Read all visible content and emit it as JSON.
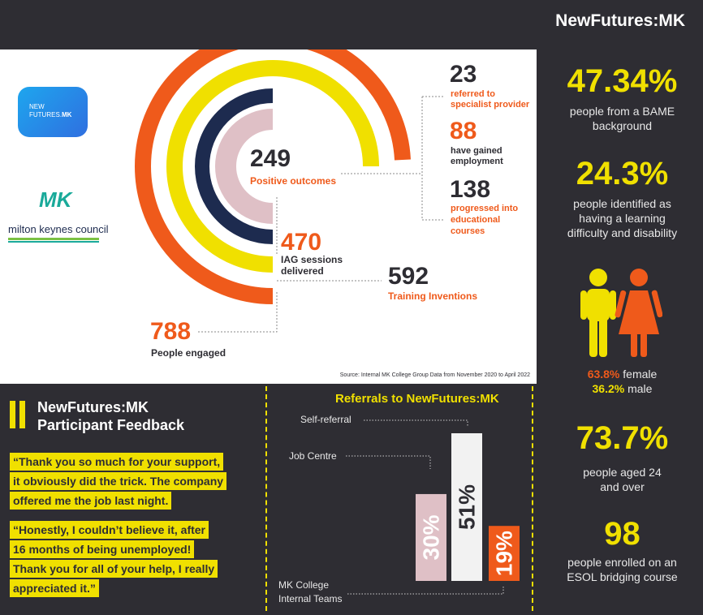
{
  "header": {
    "title": "NewFutures:MK"
  },
  "logos": {
    "nf_line1": "NEW",
    "nf_line2": "FUTURES.",
    "nf_mk": "MK",
    "council_mk": "MK",
    "council_name": "milton keynes council"
  },
  "rings": {
    "engaged": {
      "value": "788",
      "label": "People engaged"
    },
    "training": {
      "value": "592",
      "label": "Training Inventions"
    },
    "iag": {
      "value": "470",
      "label1": "IAG sessions",
      "label2": "delivered"
    },
    "positive": {
      "value": "249",
      "label": "Positive outcomes"
    }
  },
  "outcomes": [
    {
      "value": "23",
      "label1": "referred to",
      "label2": "specialist provider",
      "label3": ""
    },
    {
      "value": "88",
      "label1": "have gained",
      "label2": "employment",
      "label3": ""
    },
    {
      "value": "138",
      "label1": "progressed into",
      "label2": "educational",
      "label3": "courses"
    }
  ],
  "source": "Source: Internal MK College Group Data from November 2020 to April 2022",
  "stats": {
    "bame": {
      "value": "47.34%",
      "line1": "people from a BAME",
      "line2": "background"
    },
    "ld": {
      "value": "24.3%",
      "line1": "people identified as",
      "line2": "having a learning",
      "line3": "difficulty and disability"
    },
    "gender": {
      "female_pct": "63.8%",
      "female_label": "female",
      "male_pct": "36.2%",
      "male_label": "male"
    },
    "age": {
      "value": "73.7%",
      "line1": "people aged 24",
      "line2": "and over"
    },
    "esol": {
      "value": "98",
      "line1": "people enrolled on an",
      "line2": "ESOL bridging course"
    }
  },
  "feedback": {
    "title1": "NewFutures:MK",
    "title2": "Participant Feedback",
    "quote1": [
      "“Thank you so much for your support,",
      "it obviously did the trick. The company",
      "offered me the job last night."
    ],
    "quote2": [
      "“Honestly, I couldn’t believe it, after",
      "16 months of being unemployed!",
      "Thank you for all of your help, I really",
      "appreciated it.”"
    ]
  },
  "referrals": {
    "title": "Referrals to NewFutures:MK",
    "labels": {
      "self": "Self-referral",
      "job": "Job Centre",
      "mk1": "MK College",
      "mk2": "Internal Teams"
    }
  },
  "chart_data": {
    "type": "bar",
    "title": "Referrals to NewFutures:MK",
    "categories": [
      "Job Centre",
      "Self-referral",
      "MK College Internal Teams"
    ],
    "values": [
      30,
      51,
      19
    ],
    "value_labels": [
      "30%",
      "51%",
      "19%"
    ],
    "ylim": [
      0,
      51
    ]
  },
  "colors": {
    "orange": "#ef5a1b",
    "yellow": "#f0e000",
    "navy": "#1d2b4f",
    "pink": "#dfc0c6",
    "dark": "#2e2d33"
  }
}
